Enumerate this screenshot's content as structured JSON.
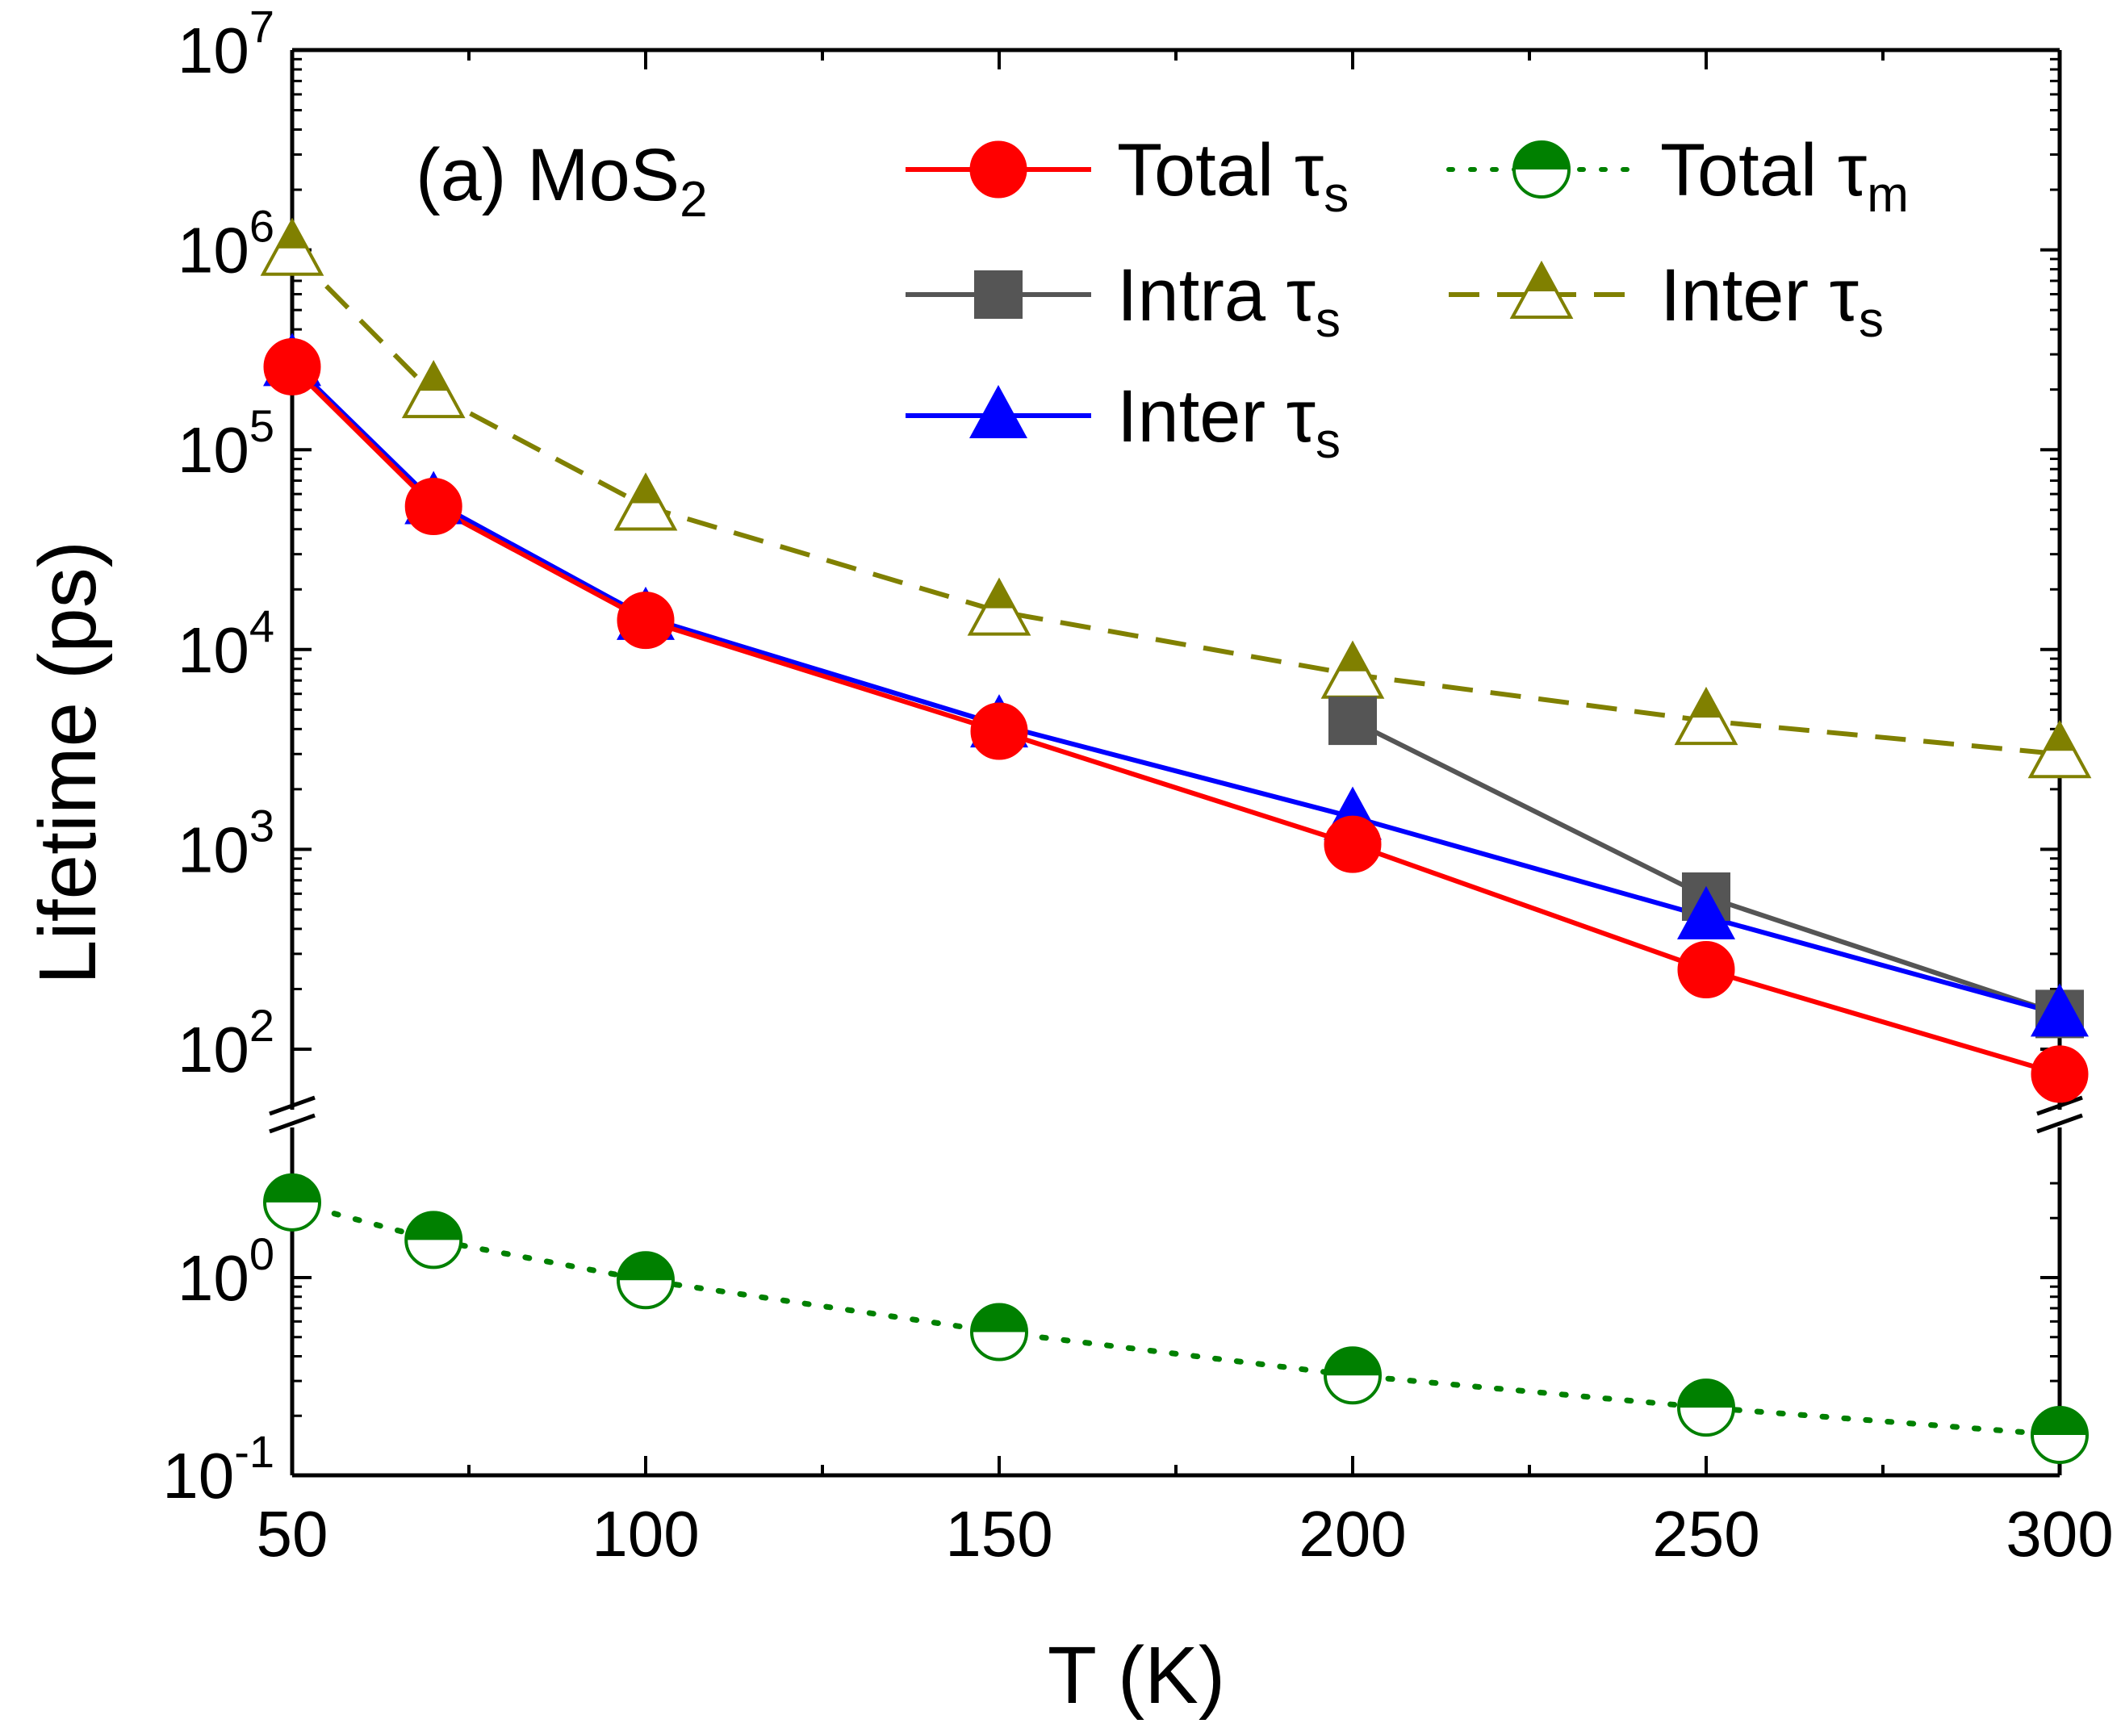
{
  "chart_data": {
    "type": "line",
    "panel_label": "(a) MoS",
    "panel_label_sub": "2",
    "xlabel": "T (K)",
    "ylabel": "Lifetime (ps)",
    "xlim": [
      50,
      300
    ],
    "xticks": [
      50,
      100,
      150,
      200,
      250,
      300
    ],
    "xtick_labels": [
      "50",
      "100",
      "150",
      "200",
      "250",
      "300"
    ],
    "yscale": "log",
    "axis_break": "between 10^-1..~4 (lower segment) and 10^1.8..10^7 (upper segment)",
    "ylim_upper": [
      60,
      10000000
    ],
    "ylim_lower": [
      0.1,
      4
    ],
    "ytick_labels": [
      {
        "value": 10000000,
        "base": "10",
        "exp": "7"
      },
      {
        "value": 1000000,
        "base": "10",
        "exp": "6"
      },
      {
        "value": 100000,
        "base": "10",
        "exp": "5"
      },
      {
        "value": 10000,
        "base": "10",
        "exp": "4"
      },
      {
        "value": 1000,
        "base": "10",
        "exp": "3"
      },
      {
        "value": 100,
        "base": "10",
        "exp": "2"
      },
      {
        "value": 1,
        "base": "10",
        "exp": "0"
      },
      {
        "value": 0.1,
        "base": "10",
        "exp": "-1"
      }
    ],
    "series": [
      {
        "name": "Total τs",
        "label": "Total τ",
        "label_sub": "s",
        "color": "#ff0000",
        "marker": "circle",
        "line": "solid",
        "x": [
          50,
          70,
          100,
          150,
          200,
          250,
          300
        ],
        "values": [
          260000,
          52000,
          14000,
          3900,
          1060,
          250,
          75
        ]
      },
      {
        "name": "Intra τs",
        "label": "Intra τ",
        "label_sub": "s",
        "color": "#555555",
        "marker": "square",
        "line": "solid",
        "x": [
          200,
          250,
          300
        ],
        "values": [
          4400,
          580,
          150
        ]
      },
      {
        "name": "Inter τs (filled)",
        "label": "Inter τ",
        "label_sub": "s",
        "color": "#0000ff",
        "marker": "triangle",
        "line": "solid",
        "x": [
          50,
          70,
          100,
          150,
          200,
          250,
          300
        ],
        "values": [
          270000,
          55000,
          14500,
          4200,
          1450,
          460,
          150
        ]
      },
      {
        "name": "Total τm",
        "label": "Total τ",
        "label_sub": "m",
        "color": "#008000",
        "marker": "half-circle",
        "line": "dotted",
        "x": [
          50,
          70,
          100,
          150,
          200,
          250,
          300
        ],
        "values": [
          2.4,
          1.55,
          0.97,
          0.53,
          0.32,
          0.22,
          0.16
        ]
      },
      {
        "name": "Inter τs (half)",
        "label": "Inter τ",
        "label_sub": "s",
        "color": "#808000",
        "marker": "half-triangle",
        "line": "dashed",
        "x": [
          50,
          70,
          100,
          150,
          200,
          250,
          300
        ],
        "values": [
          980000,
          190000,
          52000,
          15500,
          7500,
          4400,
          3000
        ]
      }
    ]
  }
}
